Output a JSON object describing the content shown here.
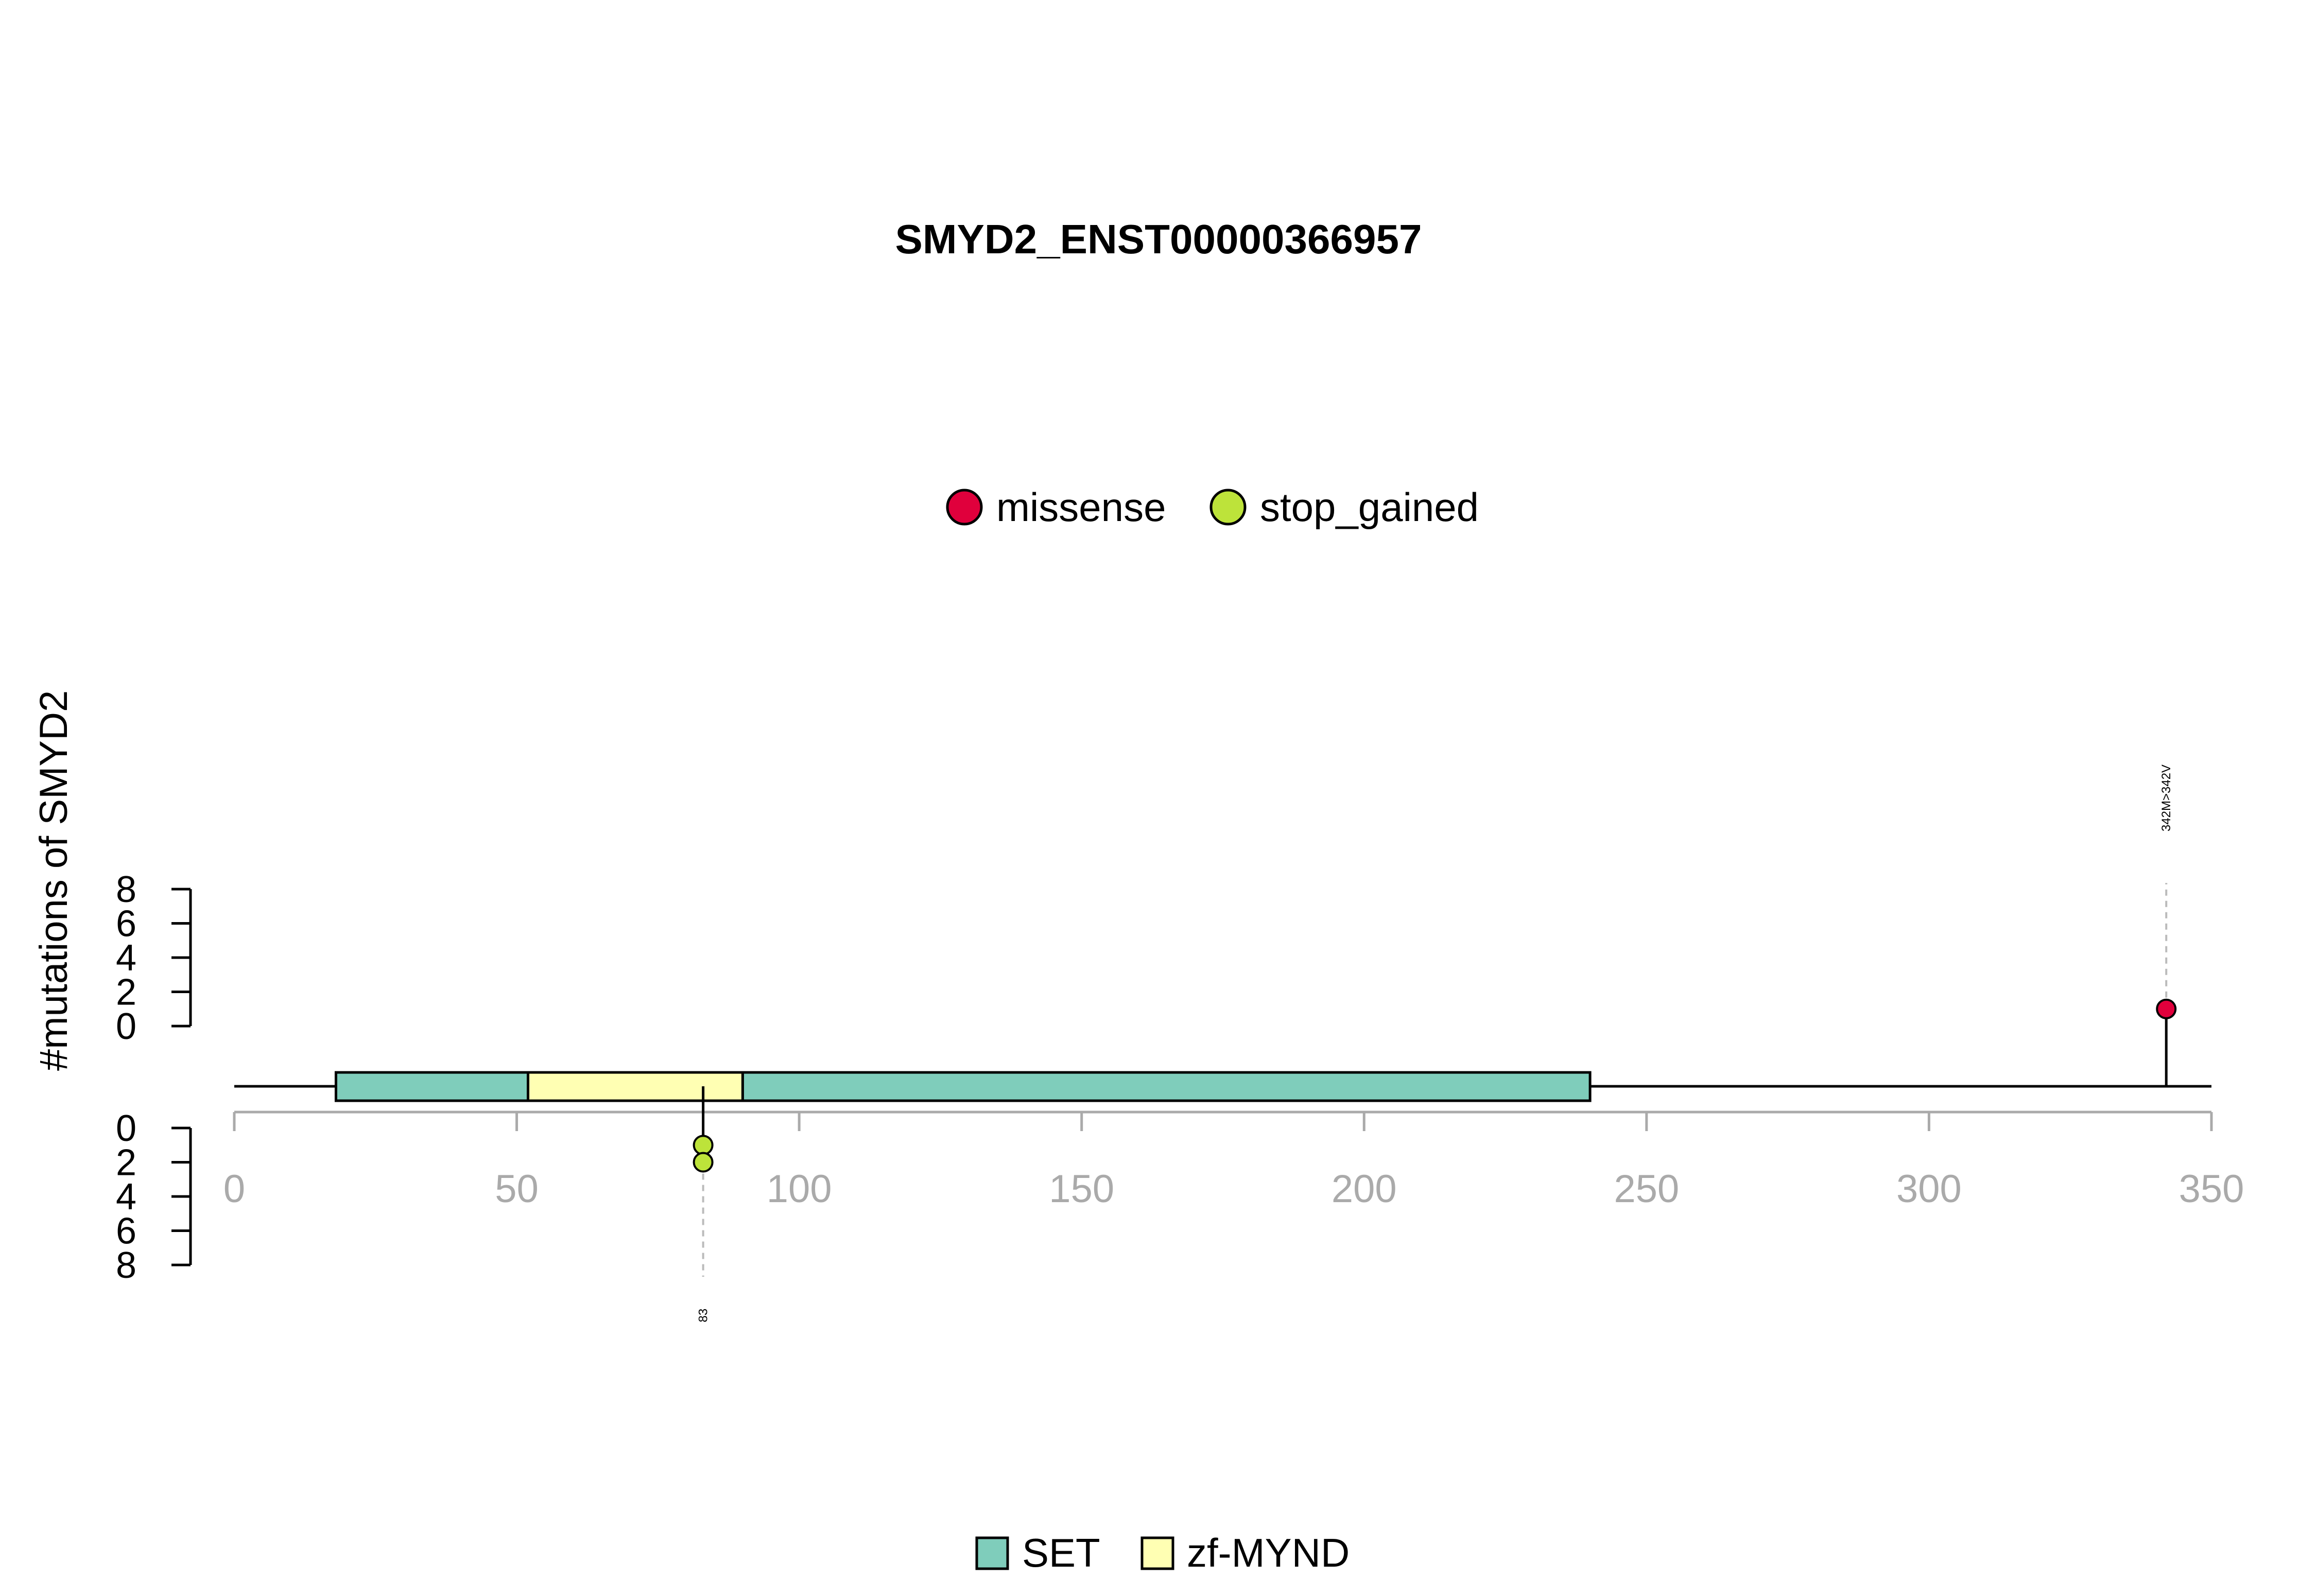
{
  "chart_data": {
    "type": "lollipop",
    "title": "SMYD2_ENST00000366957",
    "ylabel": "#mutations of SMYD2",
    "protein_length": 350,
    "xlim": [
      0,
      350
    ],
    "xticks": [
      0,
      50,
      100,
      150,
      200,
      250,
      300,
      350
    ],
    "ylim_top": [
      0,
      8
    ],
    "ylim_bottom": [
      0,
      8
    ],
    "yticks": [
      0,
      2,
      4,
      6,
      8
    ],
    "domains": [
      {
        "name": "SET",
        "start": 18,
        "end": 52,
        "color": "#7fcdbb"
      },
      {
        "name": "zf-MYND",
        "start": 52,
        "end": 90,
        "color": "#ffffb3"
      },
      {
        "name": "SET",
        "start": 90,
        "end": 240,
        "color": "#7fcdbb"
      }
    ],
    "domain_legend": [
      {
        "name": "SET",
        "color": "#7fcdbb"
      },
      {
        "name": "zf-MYND",
        "color": "#ffffb3"
      }
    ],
    "mutation_legend": [
      {
        "name": "missense",
        "color": "#e0003c"
      },
      {
        "name": "stop_gained",
        "color": "#bde33a"
      }
    ],
    "mutations": [
      {
        "position": 342,
        "count": 1,
        "type": "missense",
        "side": "top",
        "label": "342M>342V"
      },
      {
        "position": 83,
        "count": 2,
        "type": "stop_gained",
        "side": "bottom",
        "label": "83"
      }
    ]
  }
}
